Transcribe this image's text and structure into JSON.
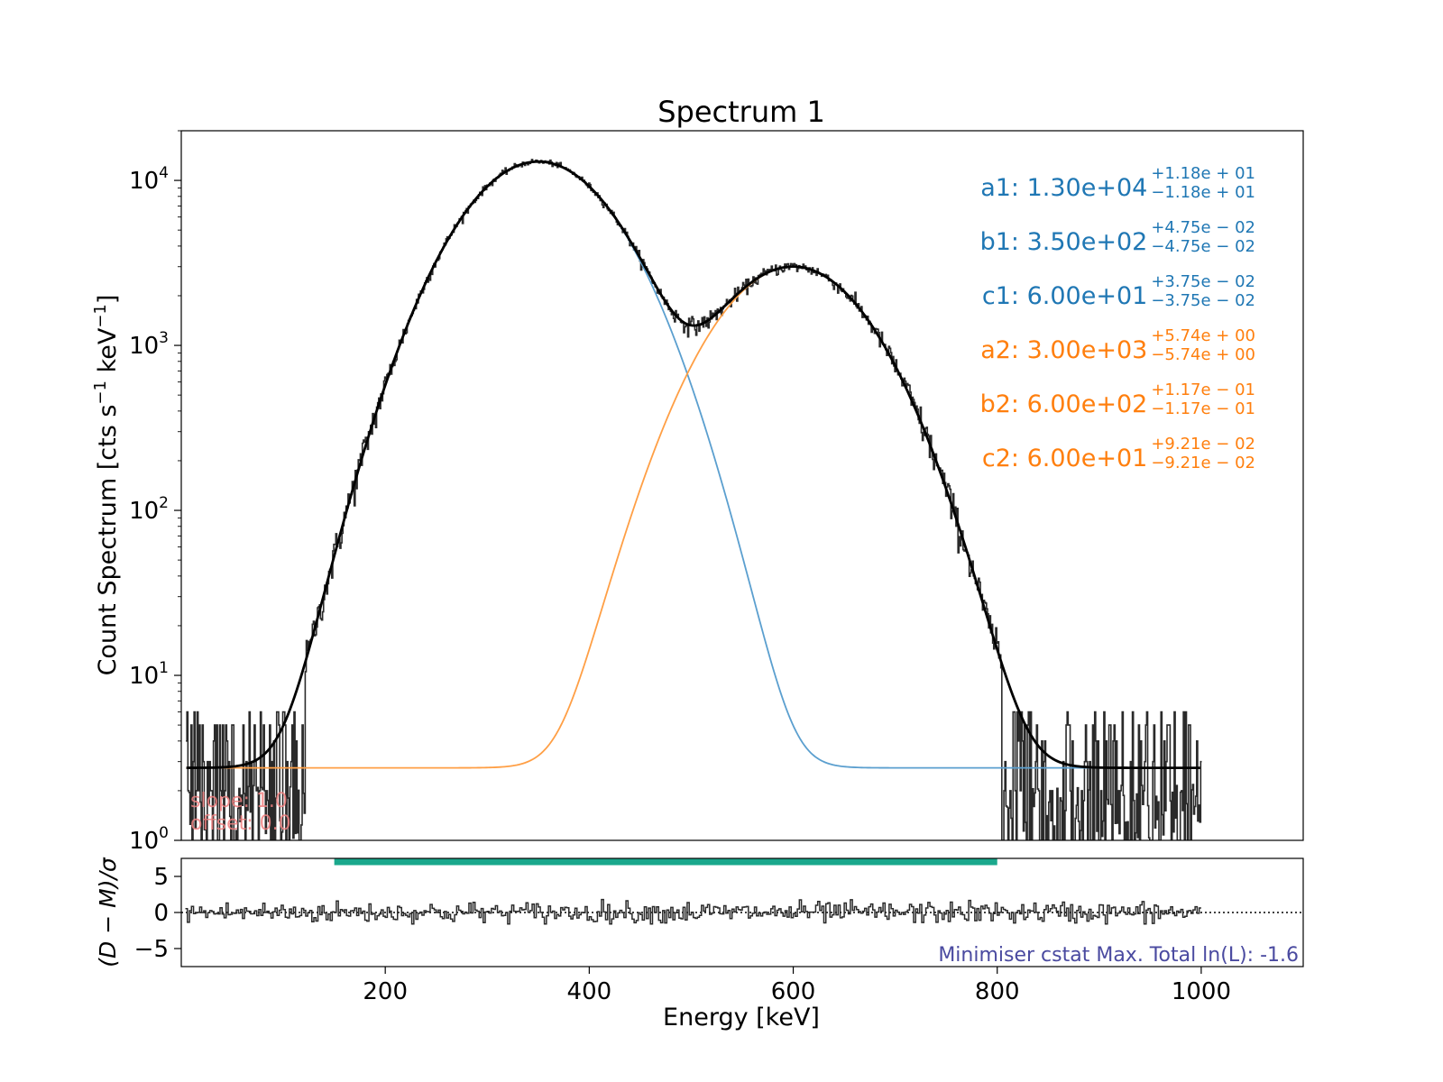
{
  "chart_data": [
    {
      "type": "line",
      "title": "Spectrum 1",
      "xlabel": "",
      "ylabel": "Count Spectrum [cts s",
      "ylabel_sup1": "−1",
      "ylabel_mid": " keV",
      "ylabel_sup2": "−1",
      "ylabel_end": "]",
      "yscale": "log",
      "xlim": [
        0,
        1100
      ],
      "ylim": [
        1,
        20000
      ],
      "y_ticks": [
        {
          "value": 1,
          "base": "10",
          "exp": "0"
        },
        {
          "value": 10,
          "base": "10",
          "exp": "1"
        },
        {
          "value": 100,
          "base": "10",
          "exp": "2"
        },
        {
          "value": 1000,
          "base": "10",
          "exp": "3"
        },
        {
          "value": 10000,
          "base": "10",
          "exp": "4"
        }
      ],
      "data_range": [
        5,
        1000
      ],
      "model": {
        "background": 2.75,
        "components": [
          {
            "a": 13000,
            "b": 350,
            "c": 60,
            "color": "#5b9fcf"
          },
          {
            "a": 3000,
            "b": 600,
            "c": 60,
            "color": "#ff9f45"
          }
        ],
        "total_color": "#000000"
      },
      "parameters": [
        {
          "name": "a1",
          "value": "1.30e+04",
          "plus": "+1.18e + 01",
          "minus": "−1.18e + 01",
          "color": "#1f77b4"
        },
        {
          "name": "b1",
          "value": "3.50e+02",
          "plus": "+4.75e − 02",
          "minus": "−4.75e − 02",
          "color": "#1f77b4"
        },
        {
          "name": "c1",
          "value": "6.00e+01",
          "plus": "+3.75e − 02",
          "minus": "−3.75e − 02",
          "color": "#1f77b4"
        },
        {
          "name": "a2",
          "value": "3.00e+03",
          "plus": "+5.74e + 00",
          "minus": "−5.74e + 00",
          "color": "#ff7f0e"
        },
        {
          "name": "b2",
          "value": "6.00e+02",
          "plus": "+1.17e − 01",
          "minus": "−1.17e − 01",
          "color": "#ff7f0e"
        },
        {
          "name": "c2",
          "value": "6.00e+01",
          "plus": "+9.21e − 02",
          "minus": "−9.21e − 02",
          "color": "#ff7f0e"
        }
      ],
      "annotations": [
        {
          "text": "slope: 1.0",
          "color": "#f08080"
        },
        {
          "text": "offset: 0.0",
          "color": "#f08080"
        }
      ]
    },
    {
      "type": "line",
      "xlabel": "Energy [keV]",
      "ylabel": "(D − M)/σ",
      "xlim": [
        0,
        1100
      ],
      "ylim": [
        -7.5,
        7.5
      ],
      "x_ticks": [
        200,
        400,
        600,
        800,
        1000
      ],
      "y_ticks": [
        {
          "value": 5,
          "label": "5"
        },
        {
          "value": 0,
          "label": "0"
        },
        {
          "value": -5,
          "label": "−5"
        }
      ],
      "fit_range": [
        150,
        800
      ],
      "fit_range_color": "#1aa88c",
      "residual_range": [
        -1.6,
        1.8
      ],
      "zero_line": "dotted",
      "footer": "Minimiser cstat Max. Total ln(L): -1.6",
      "footer_color": "#4a4aa0"
    }
  ]
}
